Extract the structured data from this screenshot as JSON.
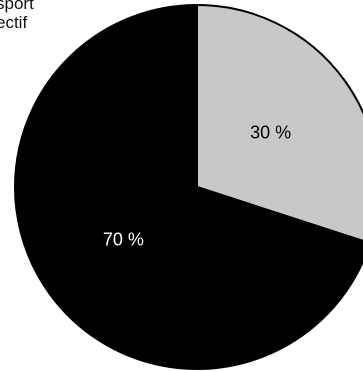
{
  "chart_data": {
    "type": "pie",
    "title": "",
    "legend_text": [
      "sport",
      "ectif"
    ],
    "series": [
      {
        "values": [
          30,
          70
        ],
        "labels": [
          "30 %",
          "70 %"
        ],
        "colors": [
          "#c8c8c8",
          "#000000"
        ],
        "label_colors": [
          "#000000",
          "#ffffff"
        ]
      }
    ],
    "start_angle_deg": 0,
    "direction": "clockwise",
    "stroke_color": "#000000"
  }
}
